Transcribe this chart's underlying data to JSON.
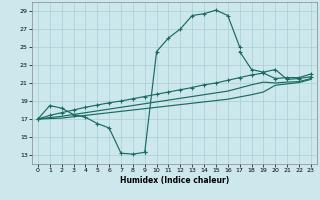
{
  "xlabel": "Humidex (Indice chaleur)",
  "xlim": [
    -0.5,
    23.5
  ],
  "ylim": [
    12,
    30
  ],
  "yticks": [
    13,
    15,
    17,
    19,
    21,
    23,
    25,
    27,
    29
  ],
  "xticks": [
    0,
    1,
    2,
    3,
    4,
    5,
    6,
    7,
    8,
    9,
    10,
    11,
    12,
    13,
    14,
    15,
    16,
    17,
    18,
    19,
    20,
    21,
    22,
    23
  ],
  "bg_color": "#cce8ec",
  "grid_color": "#aacdd4",
  "line_color": "#1a6b60",
  "curve_x1": [
    0,
    1,
    2,
    3,
    4,
    5,
    6,
    7,
    8,
    9
  ],
  "curve_y1": [
    17.0,
    18.5,
    18.2,
    17.5,
    17.2,
    16.5,
    16.0,
    13.2,
    13.1,
    13.3
  ],
  "curve_x2": [
    9,
    10,
    11,
    12,
    13,
    14,
    15,
    16,
    17
  ],
  "curve_y2": [
    13.3,
    24.5,
    26.0,
    27.0,
    28.5,
    28.7,
    29.1,
    28.5,
    25.0
  ],
  "curve_x3": [
    17,
    18,
    19,
    20,
    21,
    22,
    23
  ],
  "curve_y3": [
    24.5,
    22.5,
    22.2,
    22.5,
    21.4,
    21.5,
    21.7
  ],
  "lineA_x": [
    0,
    1,
    2,
    3,
    4,
    5,
    6,
    7,
    8,
    9,
    10,
    11,
    12,
    13,
    14,
    15,
    16,
    17,
    18,
    19,
    20,
    21,
    22,
    23
  ],
  "lineA_y": [
    17.0,
    17.4,
    17.7,
    18.0,
    18.3,
    18.55,
    18.8,
    19.0,
    19.25,
    19.5,
    19.75,
    20.0,
    20.25,
    20.5,
    20.8,
    21.0,
    21.3,
    21.6,
    21.9,
    22.1,
    21.5,
    21.6,
    21.6,
    22.0
  ],
  "lineB_x": [
    0,
    1,
    2,
    3,
    4,
    5,
    6,
    7,
    8,
    9,
    10,
    11,
    12,
    13,
    14,
    15,
    16,
    17,
    18,
    19,
    20,
    21,
    22,
    23
  ],
  "lineB_y": [
    17.0,
    17.15,
    17.3,
    17.5,
    17.7,
    17.9,
    18.1,
    18.3,
    18.5,
    18.7,
    18.9,
    19.1,
    19.3,
    19.5,
    19.7,
    19.9,
    20.1,
    20.45,
    20.8,
    21.1,
    21.0,
    21.1,
    21.15,
    21.5
  ],
  "lineC_x": [
    0,
    1,
    2,
    3,
    4,
    5,
    6,
    7,
    8,
    9,
    10,
    11,
    12,
    13,
    14,
    15,
    16,
    17,
    18,
    19,
    20,
    21,
    22,
    23
  ],
  "lineC_y": [
    17.0,
    17.05,
    17.1,
    17.25,
    17.4,
    17.55,
    17.7,
    17.85,
    18.0,
    18.15,
    18.3,
    18.45,
    18.6,
    18.75,
    18.9,
    19.05,
    19.2,
    19.45,
    19.7,
    20.0,
    20.75,
    20.9,
    21.05,
    21.4
  ]
}
